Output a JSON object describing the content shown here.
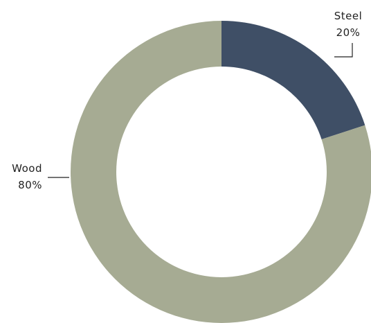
{
  "chart_data": {
    "type": "pie",
    "donut": true,
    "categories": [
      "Steel",
      "Wood"
    ],
    "values": [
      20,
      80
    ],
    "value_labels": [
      "20%",
      "80%"
    ],
    "colors": [
      "#3f4f66",
      "#a6ab93"
    ],
    "legend": "none",
    "title": ""
  }
}
